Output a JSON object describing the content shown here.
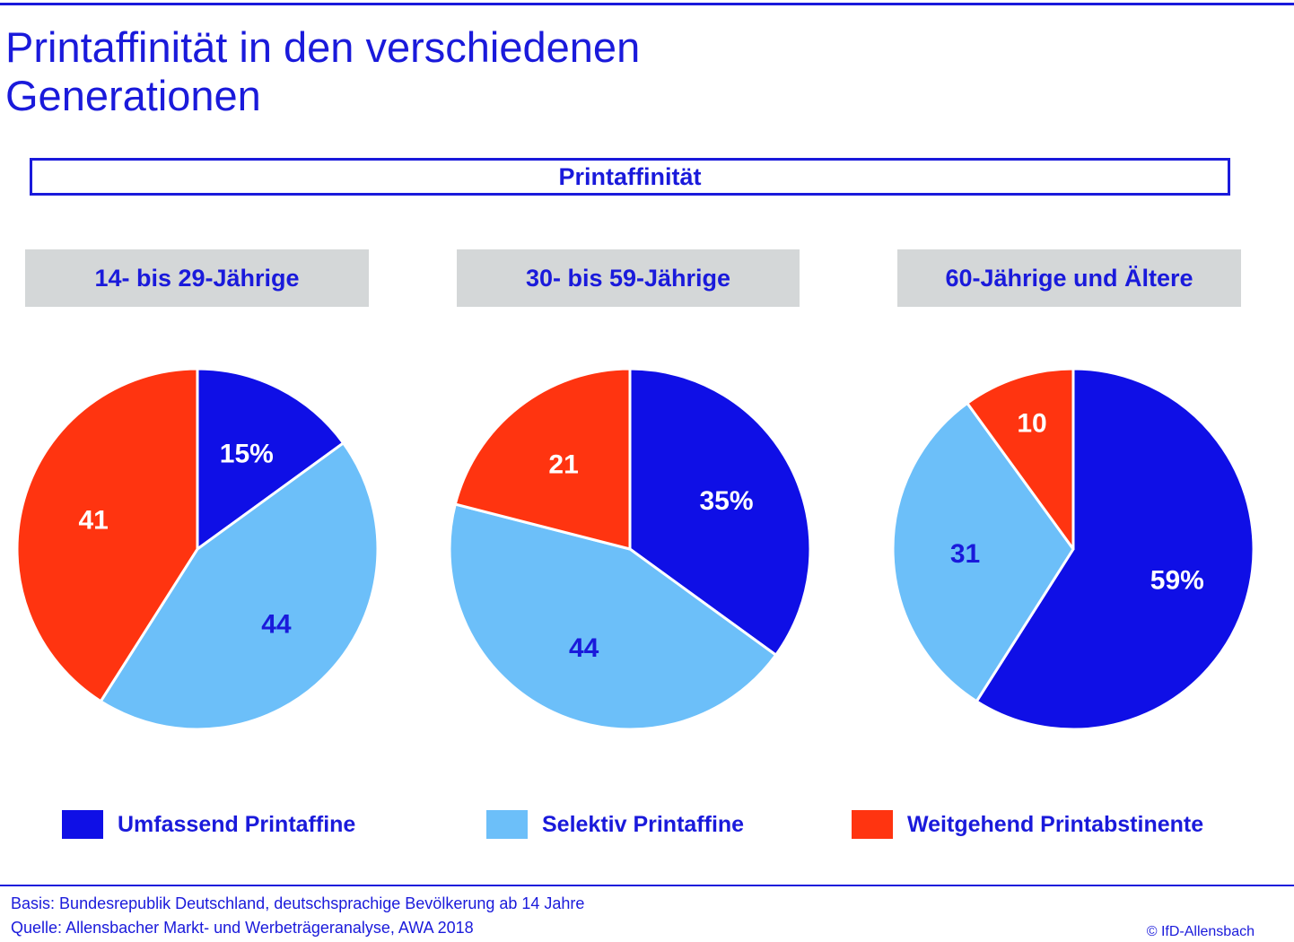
{
  "title_line1": "Printaffinität in den verschiedenen",
  "title_line2": "Generationen",
  "section_title": "Printaffinität",
  "colors": {
    "umfassend": "#0f0fe6",
    "selektiv": "#6cbff9",
    "weitgehend": "#ff3410",
    "text_blue": "#1a1adb"
  },
  "chart_data": [
    {
      "type": "pie",
      "title": "14- bis 29-Jährige",
      "slices": [
        {
          "name": "Umfassend Printaffine",
          "value": 15,
          "label": "15%"
        },
        {
          "name": "Selektiv Printaffine",
          "value": 44,
          "label": "44"
        },
        {
          "name": "Weitgehend Printabstinente",
          "value": 41,
          "label": "41"
        }
      ]
    },
    {
      "type": "pie",
      "title": "30- bis 59-Jährige",
      "slices": [
        {
          "name": "Umfassend Printaffine",
          "value": 35,
          "label": "35%"
        },
        {
          "name": "Selektiv Printaffine",
          "value": 44,
          "label": "44"
        },
        {
          "name": "Weitgehend Printabstinente",
          "value": 21,
          "label": "21"
        }
      ]
    },
    {
      "type": "pie",
      "title": "60-Jährige und Ältere",
      "slices": [
        {
          "name": "Umfassend Printaffine",
          "value": 59,
          "label": "59%"
        },
        {
          "name": "Selektiv Printaffine",
          "value": 31,
          "label": "31"
        },
        {
          "name": "Weitgehend Printabstinente",
          "value": 10,
          "label": "10"
        }
      ]
    }
  ],
  "legend": [
    {
      "label": "Umfassend Printaffine",
      "color": "#0f0fe6"
    },
    {
      "label": "Selektiv Printaffine",
      "color": "#6cbff9"
    },
    {
      "label": "Weitgehend Printabstinente",
      "color": "#ff3410"
    }
  ],
  "footer": {
    "basis_key": "Basis:",
    "basis_text": "Bundesrepublik Deutschland, deutschsprachige Bevölkerung ab 14 Jahre",
    "quelle_key": "Quelle:",
    "quelle_text": "Allensbacher Markt- und Werbeträgeranalyse, AWA 2018",
    "copyright": "© IfD-Allensbach"
  }
}
